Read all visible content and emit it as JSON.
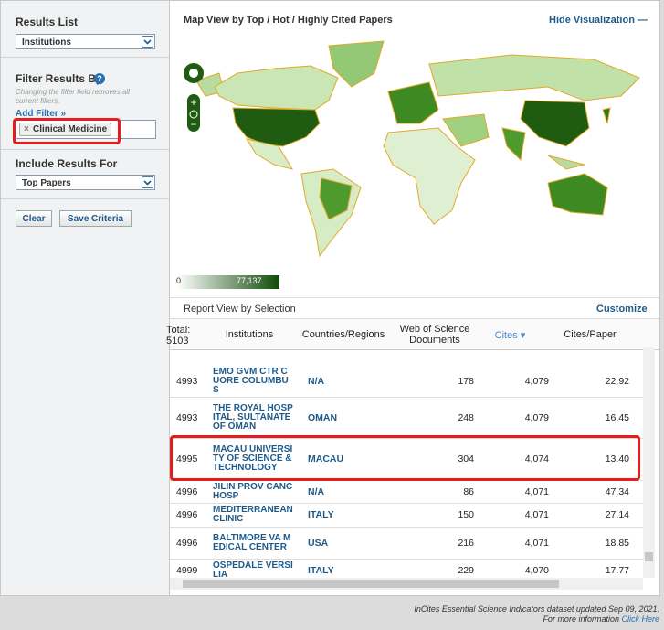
{
  "sidebar": {
    "results_list": {
      "label": "Results List",
      "selected": "Institutions"
    },
    "filter": {
      "label": "Filter Results By",
      "help": "?",
      "note": "Changing the filter field removes all current filters.",
      "add_filter": "Add Filter »",
      "chip": "Clinical Medicine"
    },
    "include": {
      "label": "Include Results For",
      "selected": "Top Papers"
    },
    "buttons": [
      "Clear",
      "Save Criteria"
    ]
  },
  "map": {
    "title": "Map View by Top / Hot / Highly Cited Papers",
    "hide": "Hide Visualization",
    "legend_min": "0",
    "legend_max": "77,137"
  },
  "report": {
    "title": "Report View by Selection",
    "customize": "Customize",
    "columns": [
      "Total: 5103",
      "Institutions",
      "Countries/Regions",
      "Web of Science Documents",
      "Cites",
      "Cites/Paper"
    ],
    "rows": [
      [
        "4993",
        "EMO GVM CTR CUORE COLUMBUS",
        "N/A",
        "178",
        "4,079",
        "22.92"
      ],
      [
        "4993",
        "THE ROYAL HOSPITAL, SULTANATE OF OMAN",
        "OMAN",
        "248",
        "4,079",
        "16.45"
      ],
      [
        "4995",
        "MACAU UNIVERSITY OF SCIENCE & TECHNOLOGY",
        "MACAU",
        "304",
        "4,074",
        "13.40"
      ],
      [
        "4996",
        "JILIN PROV CANC HOSP",
        "N/A",
        "86",
        "4,071",
        "47.34"
      ],
      [
        "4996",
        "MEDITERRANEAN CLINIC",
        "ITALY",
        "150",
        "4,071",
        "27.14"
      ],
      [
        "4996",
        "BALTIMORE VA MEDICAL CENTER",
        "USA",
        "216",
        "4,071",
        "18.85"
      ],
      [
        "4999",
        "OSPEDALE VERSILIA",
        "ITALY",
        "229",
        "4,070",
        "17.77"
      ]
    ]
  },
  "footer": {
    "note": "InCites Essential Science Indicators dataset updated Sep 09, 2021.",
    "more": "For more information",
    "link": "Click Here"
  }
}
